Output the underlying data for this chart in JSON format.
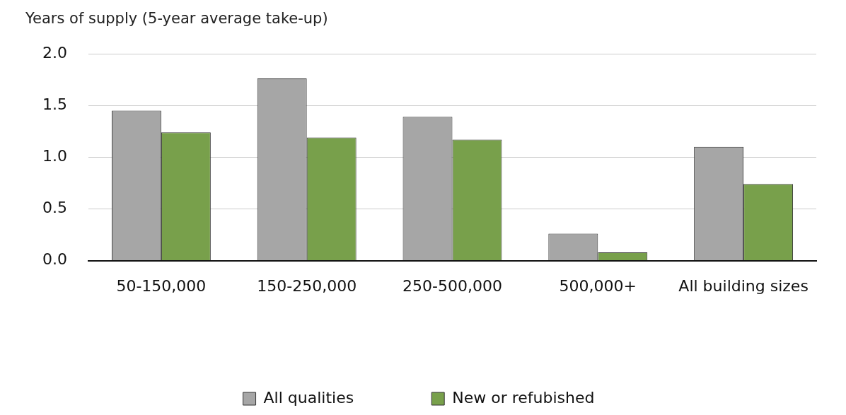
{
  "chart_data": {
    "type": "bar",
    "ylabel": "Years of supply (5-year average take-up)",
    "categories": [
      "50-150,000",
      "150-250,000",
      "250-500,000",
      "500,000+",
      "All building sizes"
    ],
    "series": [
      {
        "name": "All qualities",
        "color": "#a6a6a6",
        "values": [
          1.45,
          1.76,
          1.39,
          0.26,
          1.1
        ]
      },
      {
        "name": "New or refubished",
        "color": "#78a04b",
        "values": [
          1.24,
          1.19,
          1.17,
          0.08,
          0.74
        ]
      }
    ],
    "ylim": [
      0,
      2
    ],
    "yticks": [
      {
        "value": 0,
        "label": "0.0"
      },
      {
        "value": 0.5,
        "label": "0.5"
      },
      {
        "value": 1,
        "label": "1.0"
      },
      {
        "value": 1.5,
        "label": "1.5"
      },
      {
        "value": 2,
        "label": "2.0"
      }
    ],
    "grid": "y",
    "legend": "bottom"
  }
}
